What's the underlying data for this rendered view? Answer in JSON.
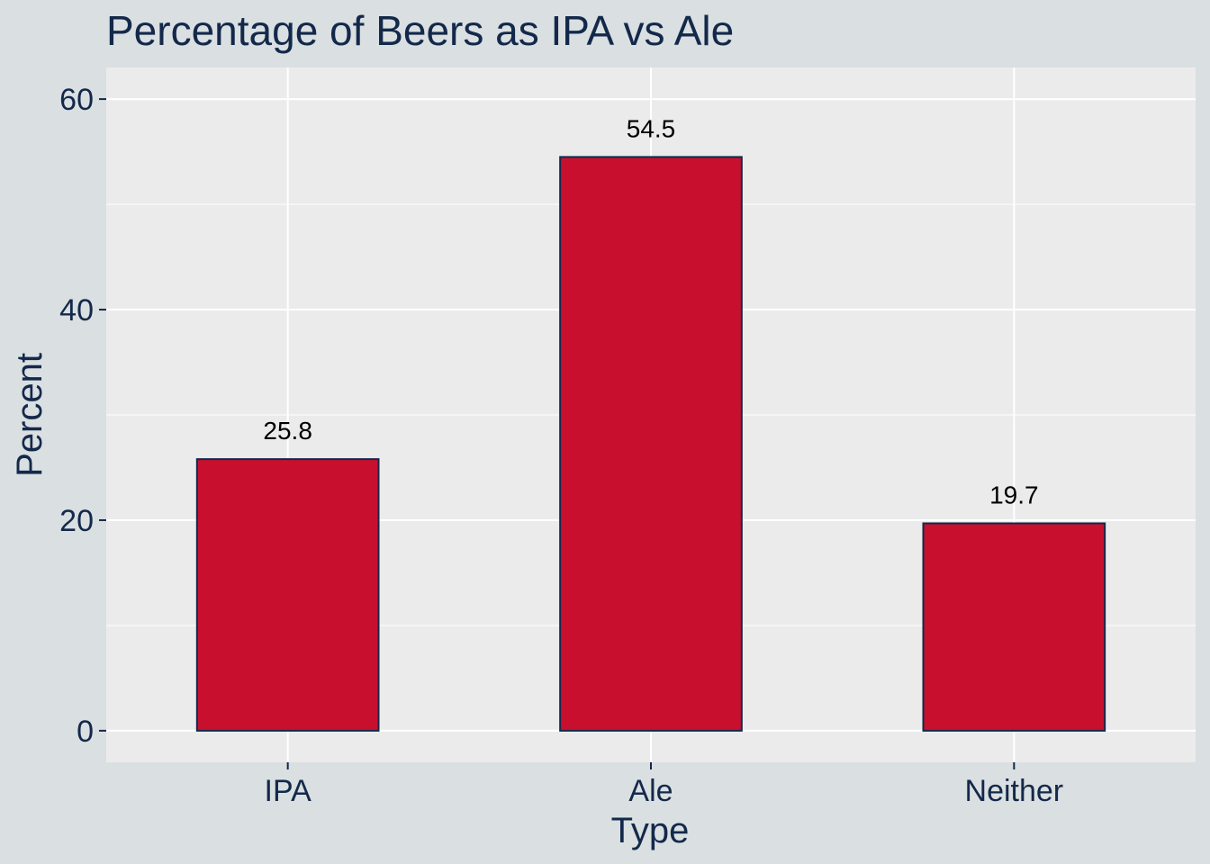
{
  "chart_data": {
    "type": "bar",
    "title": "Percentage of Beers as IPA vs Ale",
    "xlabel": "Type",
    "ylabel": "Percent",
    "categories": [
      "IPA",
      "Ale",
      "Neither"
    ],
    "values": [
      25.8,
      54.5,
      19.7
    ],
    "data_labels": [
      "25.8",
      "54.5",
      "19.7"
    ],
    "ylim": [
      -3,
      63
    ],
    "yticks": [
      0,
      20,
      40,
      60
    ],
    "ytick_labels": [
      "0",
      "20",
      "40",
      "60"
    ],
    "grid": true,
    "legend": "none",
    "colors": {
      "background": "#dadfe1",
      "panel": "#ebebeb",
      "grid": "#ffffff",
      "bar_fill": "#c8102e",
      "bar_outline": "#13294b",
      "text": "#13294b",
      "axis_ticks": "#13294b"
    }
  }
}
